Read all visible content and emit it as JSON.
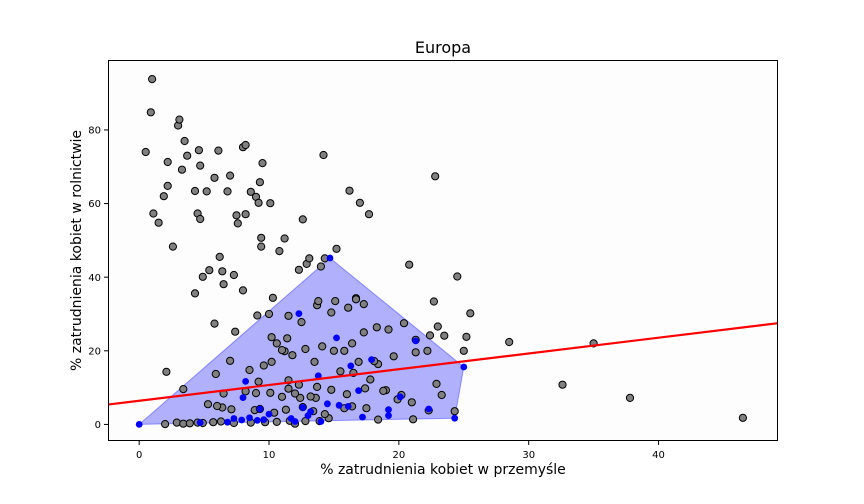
{
  "chart_data": {
    "type": "scatter",
    "title": "Europa",
    "xlabel": "% zatrudnienia kobiet w przemyśle",
    "ylabel": "% zatrudnienia kobiet w rolnictwie",
    "xlim": [
      -2.4,
      49.2
    ],
    "ylim": [
      -4.5,
      99.0
    ],
    "xticks": [
      0,
      10,
      20,
      30,
      40
    ],
    "yticks": [
      0,
      20,
      40,
      60,
      80
    ],
    "grid": false,
    "legend": "none",
    "colors": {
      "gray_points": "#808080",
      "blue_points": "#0000ff",
      "hull_fill": "#0000ff",
      "trend_line": "#ff0000",
      "plot_background": "#fdfdfd"
    },
    "trend_line": {
      "x": [
        -2.4,
        49.2
      ],
      "y": [
        5.4,
        27.5
      ]
    },
    "hull_polygon": [
      [
        0,
        0
      ],
      [
        14.7,
        45.2
      ],
      [
        25.0,
        15.6
      ],
      [
        24.3,
        1.7
      ],
      [
        0,
        0
      ]
    ],
    "series_gray": [
      [
        1.0,
        93.8
      ],
      [
        0.5,
        74.0
      ],
      [
        0.9,
        84.8
      ],
      [
        2.2,
        71.3
      ],
      [
        3.0,
        81.2
      ],
      [
        3.1,
        82.8
      ],
      [
        3.3,
        69.2
      ],
      [
        3.5,
        77.0
      ],
      [
        3.7,
        73.0
      ],
      [
        4.3,
        63.4
      ],
      [
        4.7,
        70.3
      ],
      [
        4.6,
        74.5
      ],
      [
        5.2,
        63.3
      ],
      [
        6.1,
        74.4
      ],
      [
        5.8,
        67.0
      ],
      [
        6.8,
        63.3
      ],
      [
        7.0,
        67.6
      ],
      [
        8.0,
        75.3
      ],
      [
        8.2,
        75.9
      ],
      [
        9.3,
        65.8
      ],
      [
        9.5,
        71.0
      ],
      [
        8.6,
        63.2
      ],
      [
        9.0,
        61.8
      ],
      [
        9.2,
        60.2
      ],
      [
        10.1,
        60.1
      ],
      [
        1.9,
        62.0
      ],
      [
        2.2,
        64.8
      ],
      [
        1.1,
        57.3
      ],
      [
        1.5,
        54.8
      ],
      [
        4.5,
        57.3
      ],
      [
        4.7,
        55.8
      ],
      [
        7.5,
        56.8
      ],
      [
        7.6,
        54.6
      ],
      [
        8.2,
        57.1
      ],
      [
        12.6,
        55.7
      ],
      [
        2.6,
        48.3
      ],
      [
        9.4,
        50.7
      ],
      [
        9.4,
        48.3
      ],
      [
        11.2,
        50.5
      ],
      [
        10.8,
        47.1
      ],
      [
        6.2,
        45.5
      ],
      [
        4.9,
        40.1
      ],
      [
        5.4,
        41.9
      ],
      [
        6.4,
        41.6
      ],
      [
        7.3,
        40.6
      ],
      [
        6.5,
        38.1
      ],
      [
        4.3,
        35.6
      ],
      [
        8.0,
        36.4
      ],
      [
        10.3,
        34.4
      ],
      [
        12.3,
        42.0
      ],
      [
        12.9,
        43.6
      ],
      [
        14.0,
        42.9
      ],
      [
        15.2,
        47.7
      ],
      [
        14.3,
        45.1
      ],
      [
        13.1,
        45.1
      ],
      [
        14.2,
        73.2
      ],
      [
        16.2,
        63.5
      ],
      [
        17.0,
        60.2
      ],
      [
        17.7,
        57.1
      ],
      [
        22.8,
        67.4
      ],
      [
        20.8,
        43.4
      ],
      [
        24.5,
        40.2
      ],
      [
        22.7,
        33.4
      ],
      [
        23.0,
        26.6
      ],
      [
        22.4,
        24.2
      ],
      [
        25.2,
        23.8
      ],
      [
        25.5,
        30.2
      ],
      [
        25.0,
        20.0
      ],
      [
        22.9,
        11.0
      ],
      [
        28.5,
        22.4
      ],
      [
        32.6,
        10.8
      ],
      [
        35.0,
        22.0
      ],
      [
        37.8,
        7.2
      ],
      [
        46.5,
        1.8
      ],
      [
        5.8,
        27.4
      ],
      [
        7.4,
        25.2
      ],
      [
        9.1,
        29.6
      ],
      [
        10.0,
        30.0
      ],
      [
        11.5,
        29.5
      ],
      [
        12.5,
        27.8
      ],
      [
        13.7,
        32.4
      ],
      [
        15.1,
        33.5
      ],
      [
        16.1,
        31.7
      ],
      [
        16.7,
        34.3
      ],
      [
        17.3,
        32.7
      ],
      [
        18.3,
        26.4
      ],
      [
        19.2,
        25.8
      ],
      [
        20.4,
        27.5
      ],
      [
        21.3,
        23.0
      ],
      [
        10.6,
        22.0
      ],
      [
        11.2,
        19.9
      ],
      [
        11.8,
        18.8
      ],
      [
        12.8,
        20.5
      ],
      [
        13.5,
        17.0
      ],
      [
        14.1,
        21.2
      ],
      [
        15.0,
        20.0
      ],
      [
        15.8,
        20.0
      ],
      [
        16.4,
        22.0
      ],
      [
        16.9,
        17.0
      ],
      [
        18.4,
        16.4
      ],
      [
        19.6,
        18.5
      ],
      [
        21.3,
        19.6
      ],
      [
        22.2,
        20.0
      ],
      [
        23.5,
        24.1
      ],
      [
        9.6,
        16.0
      ],
      [
        10.2,
        17.0
      ],
      [
        7.0,
        17.3
      ],
      [
        5.9,
        13.7
      ],
      [
        8.5,
        14.8
      ],
      [
        9.2,
        11.6
      ],
      [
        11.5,
        12.0
      ],
      [
        12.3,
        10.8
      ],
      [
        13.7,
        10.2
      ],
      [
        15.5,
        14.4
      ],
      [
        16.5,
        14.0
      ],
      [
        17.8,
        12.2
      ],
      [
        19.0,
        9.3
      ],
      [
        20.2,
        8.0
      ],
      [
        21.0,
        6.0
      ],
      [
        2.1,
        14.3
      ],
      [
        3.4,
        9.6
      ],
      [
        6.5,
        8.4
      ],
      [
        8.2,
        9.0
      ],
      [
        10.1,
        8.6
      ],
      [
        11.0,
        7.5
      ],
      [
        12.4,
        7.2
      ],
      [
        13.6,
        7.2
      ],
      [
        14.8,
        9.4
      ],
      [
        16.0,
        8.2
      ],
      [
        17.4,
        9.8
      ],
      [
        18.8,
        9.1
      ],
      [
        19.9,
        6.8
      ],
      [
        2.9,
        0.5
      ],
      [
        3.4,
        0.2
      ],
      [
        3.9,
        0.3
      ],
      [
        4.5,
        0.5
      ],
      [
        5.7,
        0.6
      ],
      [
        6.3,
        0.8
      ],
      [
        7.3,
        0.4
      ],
      [
        8.6,
        0.5
      ],
      [
        9.7,
        0.6
      ],
      [
        10.6,
        0.7
      ],
      [
        11.6,
        1.0
      ],
      [
        12.0,
        0.2
      ],
      [
        12.8,
        0.9
      ],
      [
        13.9,
        0.9
      ],
      [
        14.6,
        1.7
      ],
      [
        6.4,
        4.6
      ],
      [
        7.1,
        4.1
      ],
      [
        8.9,
        3.9
      ],
      [
        9.3,
        4.2
      ],
      [
        10.4,
        3.2
      ],
      [
        11.3,
        4.0
      ],
      [
        12.6,
        4.7
      ],
      [
        13.4,
        3.6
      ],
      [
        14.3,
        2.8
      ],
      [
        15.8,
        4.4
      ],
      [
        16.4,
        4.9
      ],
      [
        17.5,
        4.4
      ],
      [
        18.4,
        1.3
      ],
      [
        21.1,
        1.4
      ],
      [
        22.3,
        3.8
      ],
      [
        24.3,
        3.6
      ],
      [
        23.3,
        8.0
      ],
      [
        11.5,
        9.7
      ],
      [
        12.0,
        8.4
      ],
      [
        6.0,
        5.0
      ],
      [
        2.0,
        0.1
      ],
      [
        4.9,
        0.4
      ],
      [
        5.3,
        5.5
      ],
      [
        9.0,
        8.5
      ],
      [
        13.2,
        7.6
      ],
      [
        18.1,
        17.2
      ],
      [
        16.7,
        34.0
      ],
      [
        17.3,
        25.0
      ],
      [
        14.8,
        30.4
      ],
      [
        13.8,
        33.5
      ],
      [
        11.4,
        23.4
      ],
      [
        11.0,
        20.2
      ],
      [
        10.2,
        23.7
      ]
    ],
    "series_blue": [
      [
        0.0,
        0.0
      ],
      [
        14.7,
        45.2
      ],
      [
        25.0,
        15.6
      ],
      [
        24.3,
        1.7
      ],
      [
        12.3,
        30.1
      ],
      [
        15.2,
        23.5
      ],
      [
        17.9,
        17.6
      ],
      [
        21.3,
        22.7
      ],
      [
        16.3,
        15.9
      ],
      [
        13.8,
        13.2
      ],
      [
        8.2,
        11.7
      ],
      [
        16.9,
        9.2
      ],
      [
        8.0,
        7.3
      ],
      [
        9.3,
        4.2
      ],
      [
        14.5,
        5.6
      ],
      [
        15.4,
        5.2
      ],
      [
        16.1,
        4.9
      ],
      [
        19.2,
        4.0
      ],
      [
        20.1,
        7.5
      ],
      [
        22.3,
        4.2
      ],
      [
        10.0,
        2.8
      ],
      [
        11.7,
        1.6
      ],
      [
        13.0,
        2.4
      ],
      [
        13.2,
        3.5
      ],
      [
        7.3,
        1.6
      ],
      [
        8.5,
        1.8
      ],
      [
        9.1,
        1.1
      ],
      [
        17.2,
        2.0
      ],
      [
        19.2,
        2.4
      ],
      [
        4.7,
        0.5
      ],
      [
        6.8,
        0.6
      ],
      [
        7.9,
        1.2
      ],
      [
        9.6,
        1.3
      ],
      [
        12.0,
        0.8
      ],
      [
        12.6,
        4.6
      ],
      [
        14.0,
        0.8
      ]
    ]
  }
}
